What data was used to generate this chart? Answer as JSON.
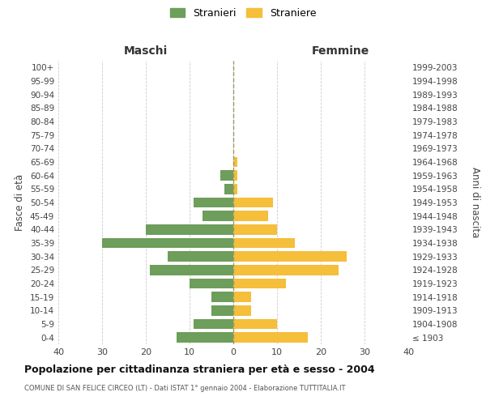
{
  "age_groups": [
    "0-4",
    "5-9",
    "10-14",
    "15-19",
    "20-24",
    "25-29",
    "30-34",
    "35-39",
    "40-44",
    "45-49",
    "50-54",
    "55-59",
    "60-64",
    "65-69",
    "70-74",
    "75-79",
    "80-84",
    "85-89",
    "90-94",
    "95-99",
    "100+"
  ],
  "birth_years": [
    "1999-2003",
    "1994-1998",
    "1989-1993",
    "1984-1988",
    "1979-1983",
    "1974-1978",
    "1969-1973",
    "1964-1968",
    "1959-1963",
    "1954-1958",
    "1949-1953",
    "1944-1948",
    "1939-1943",
    "1934-1938",
    "1929-1933",
    "1924-1928",
    "1919-1923",
    "1914-1918",
    "1909-1913",
    "1904-1908",
    "≤ 1903"
  ],
  "maschi": [
    13,
    9,
    5,
    5,
    10,
    19,
    15,
    30,
    20,
    7,
    9,
    2,
    3,
    0,
    0,
    0,
    0,
    0,
    0,
    0,
    0
  ],
  "femmine": [
    17,
    10,
    4,
    4,
    12,
    24,
    26,
    14,
    10,
    8,
    9,
    1,
    1,
    1,
    0,
    0,
    0,
    0,
    0,
    0,
    0
  ],
  "color_maschi": "#6d9e5b",
  "color_femmine": "#f5be3b",
  "title_main": "Popolazione per cittadinanza straniera per età e sesso - 2004",
  "title_sub": "COMUNE DI SAN FELICE CIRCEO (LT) - Dati ISTAT 1° gennaio 2004 - Elaborazione TUTTITALIA.IT",
  "xlabel_left": "Maschi",
  "xlabel_right": "Femmine",
  "ylabel_left": "Fasce di età",
  "ylabel_right": "Anni di nascita",
  "legend_maschi": "Stranieri",
  "legend_femmine": "Straniere",
  "xlim": 40,
  "background_color": "#ffffff",
  "grid_color": "#cccccc"
}
